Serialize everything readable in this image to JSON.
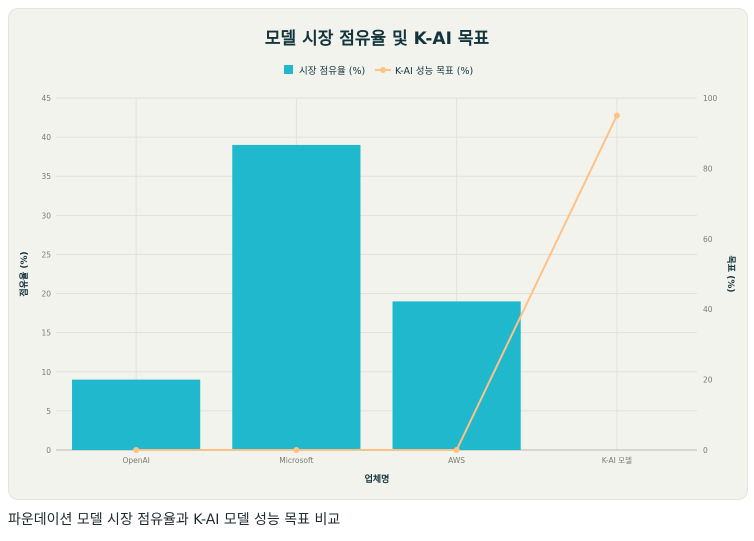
{
  "caption": "파운데이션 모델 시장 점유율과 K-AI 모델 성능 목표 비교",
  "chart_data": {
    "type": "bar",
    "title": "모델 시장 점유율 및 K-AI 목표",
    "xlabel": "업체명",
    "ylabel": "점유율 (%)",
    "y2label": "목표 (%)",
    "categories": [
      "OpenAI",
      "Microsoft",
      "AWS",
      "K-AI 모델"
    ],
    "ylim": [
      0,
      45
    ],
    "yticks": [
      0,
      5,
      10,
      15,
      20,
      25,
      30,
      35,
      40,
      45
    ],
    "y2lim": [
      0,
      100
    ],
    "y2ticks": [
      0,
      20,
      40,
      60,
      80,
      100
    ],
    "grid": true,
    "legend_position": "top-center",
    "series": [
      {
        "name": "시장 점유율 (%)",
        "type": "bar",
        "axis": "left",
        "color": "#1fb8cd",
        "values": [
          9,
          39,
          19,
          0
        ]
      },
      {
        "name": "K-AI 성능 목표 (%)",
        "type": "line",
        "axis": "right",
        "color": "#ffc185",
        "values": [
          0,
          0,
          0,
          95
        ]
      }
    ]
  }
}
